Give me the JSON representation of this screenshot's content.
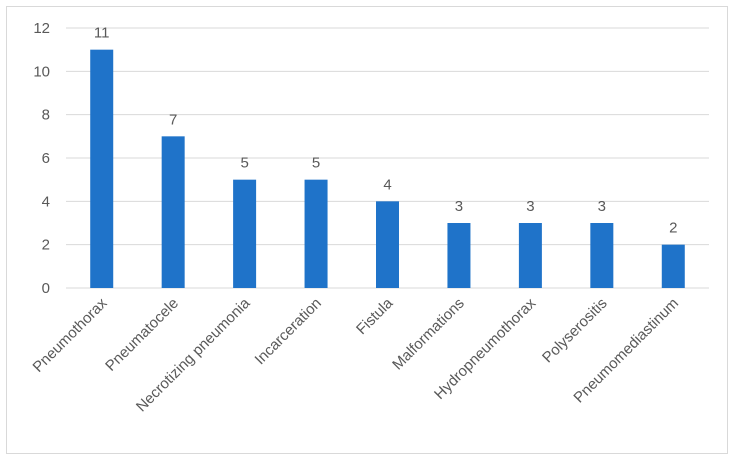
{
  "chart_data": {
    "type": "bar",
    "title": "",
    "xlabel": "",
    "ylabel": "",
    "categories": [
      "Pneumothorax",
      "Pneumatocele",
      "Necrotizing pneumonia",
      "Incarceration",
      "Fistula",
      "Malformations",
      "Hydropneumothorax",
      "Polyserositis",
      "Pneumomediastinum"
    ],
    "values": [
      11,
      7,
      5,
      5,
      4,
      3,
      3,
      3,
      2
    ],
    "ylim": [
      0,
      12
    ],
    "yticks": [
      "0",
      "2",
      "4",
      "6",
      "8",
      "10",
      "12"
    ],
    "grid": true,
    "legend": "none",
    "bar_color": "#1f73c9",
    "grid_color": "#d9d9d9",
    "label_color": "#595959"
  }
}
